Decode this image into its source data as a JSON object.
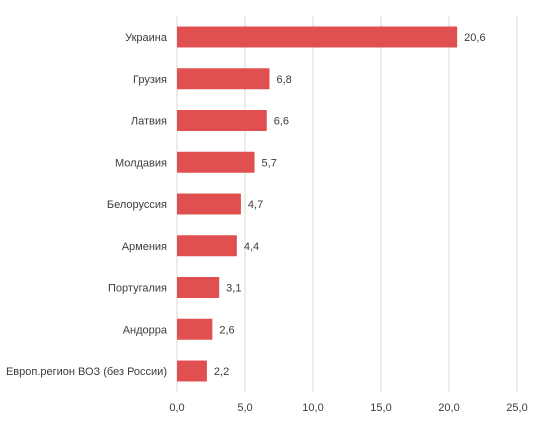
{
  "chart_data": {
    "type": "bar",
    "orientation": "horizontal",
    "categories": [
      "Украина",
      "Грузия",
      "Латвия",
      "Молдавия",
      "Белоруссия",
      "Армения",
      "Португалия",
      "Андорра",
      "Европ.регион ВОЗ (без России)"
    ],
    "values": [
      20.6,
      6.8,
      6.6,
      5.7,
      4.7,
      4.4,
      3.1,
      2.6,
      2.2
    ],
    "value_labels": [
      "20,6",
      "6,8",
      "6,6",
      "5,7",
      "4,7",
      "4,4",
      "3,1",
      "2,6",
      "2,2"
    ],
    "xlim": [
      0,
      25
    ],
    "x_ticks": [
      0,
      5,
      10,
      15,
      20,
      25
    ],
    "x_tick_labels": [
      "0,0",
      "5,0",
      "10,0",
      "15,0",
      "20,0",
      "25,0"
    ],
    "grid": true,
    "bar_color": "#e05050",
    "grid_color": "#d9d9d9"
  }
}
